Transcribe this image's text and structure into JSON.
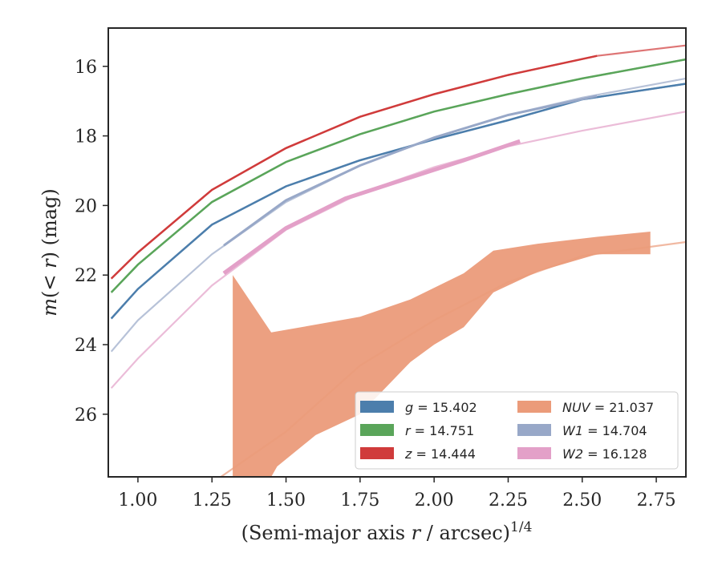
{
  "chart_data": {
    "type": "line",
    "xlabel_pre": "(Semi-major axis ",
    "xlabel_var": "r",
    "xlabel_mid": " / arcsec)",
    "xlabel_sup": "1/4",
    "ylabel_pre": "m",
    "ylabel_mid": "(< ",
    "ylabel_var": "r",
    "ylabel_post": ") (mag)",
    "xlim": [
      0.9,
      2.85
    ],
    "ylim": [
      27.8,
      14.9
    ],
    "y_inverted": true,
    "grid": false,
    "legend_position": "bottom-right",
    "legend_columns": 2,
    "x_ticks": [
      {
        "v": 1.0,
        "label": "1.00"
      },
      {
        "v": 1.25,
        "label": "1.25"
      },
      {
        "v": 1.5,
        "label": "1.50"
      },
      {
        "v": 1.75,
        "label": "1.75"
      },
      {
        "v": 2.0,
        "label": "2.00"
      },
      {
        "v": 2.25,
        "label": "2.25"
      },
      {
        "v": 2.5,
        "label": "2.50"
      },
      {
        "v": 2.75,
        "label": "2.75"
      }
    ],
    "y_ticks": [
      {
        "v": 16,
        "label": "16"
      },
      {
        "v": 18,
        "label": "18"
      },
      {
        "v": 20,
        "label": "20"
      },
      {
        "v": 22,
        "label": "22"
      },
      {
        "v": 24,
        "label": "24"
      },
      {
        "v": 26,
        "label": "26"
      }
    ],
    "series": [
      {
        "key": "g",
        "band": "g",
        "value": "15.402",
        "color": "#4c7eac",
        "model": [
          [
            0.91,
            23.25
          ],
          [
            1.0,
            22.4
          ],
          [
            1.25,
            20.55
          ],
          [
            1.5,
            19.45
          ],
          [
            1.75,
            18.7
          ],
          [
            2.0,
            18.1
          ],
          [
            2.25,
            17.55
          ],
          [
            2.5,
            16.95
          ],
          [
            2.85,
            16.5
          ]
        ],
        "data": [
          [
            0.91,
            23.25
          ],
          [
            1.0,
            22.4
          ],
          [
            1.25,
            20.55
          ],
          [
            1.5,
            19.45
          ],
          [
            1.75,
            18.7
          ],
          [
            2.0,
            18.1
          ],
          [
            2.25,
            17.55
          ],
          [
            2.5,
            16.95
          ],
          [
            2.85,
            16.5
          ]
        ],
        "data_width": 2.5
      },
      {
        "key": "r",
        "band": "r",
        "value": "14.751",
        "color": "#5aa55a",
        "model": [
          [
            0.91,
            22.5
          ],
          [
            1.0,
            21.7
          ],
          [
            1.25,
            19.9
          ],
          [
            1.5,
            18.75
          ],
          [
            1.75,
            17.95
          ],
          [
            2.0,
            17.3
          ],
          [
            2.25,
            16.8
          ],
          [
            2.5,
            16.35
          ],
          [
            2.85,
            15.8
          ]
        ],
        "data": [
          [
            0.91,
            22.5
          ],
          [
            1.0,
            21.7
          ],
          [
            1.25,
            19.9
          ],
          [
            1.5,
            18.75
          ],
          [
            1.75,
            17.95
          ],
          [
            2.0,
            17.3
          ],
          [
            2.25,
            16.8
          ],
          [
            2.5,
            16.35
          ],
          [
            2.85,
            15.8
          ]
        ],
        "data_width": 2.5
      },
      {
        "key": "z",
        "band": "z",
        "value": "14.444",
        "color": "#d03b3b",
        "model": [
          [
            0.91,
            22.1
          ],
          [
            1.0,
            21.35
          ],
          [
            1.25,
            19.55
          ],
          [
            1.5,
            18.35
          ],
          [
            1.75,
            17.45
          ],
          [
            2.0,
            16.8
          ],
          [
            2.25,
            16.25
          ],
          [
            2.55,
            15.7
          ],
          [
            2.85,
            15.4
          ]
        ],
        "data": [
          [
            0.91,
            22.1
          ],
          [
            1.0,
            21.35
          ],
          [
            1.25,
            19.55
          ],
          [
            1.5,
            18.35
          ],
          [
            1.75,
            17.45
          ],
          [
            2.0,
            16.8
          ],
          [
            2.25,
            16.25
          ],
          [
            2.55,
            15.7
          ]
        ],
        "data_width": 2.5
      },
      {
        "key": "nuv",
        "band": "NUV",
        "value": "21.037",
        "color": "#eb9b7a",
        "model": [
          [
            1.28,
            27.8
          ],
          [
            1.5,
            26.5
          ],
          [
            1.75,
            24.6
          ],
          [
            2.0,
            23.3
          ],
          [
            2.25,
            22.2
          ],
          [
            2.5,
            21.45
          ],
          [
            2.85,
            21.05
          ]
        ],
        "band_upper": [
          [
            1.32,
            22.0
          ],
          [
            1.45,
            23.65
          ],
          [
            1.75,
            23.2
          ],
          [
            1.92,
            22.7
          ],
          [
            2.1,
            21.95
          ],
          [
            2.2,
            21.3
          ],
          [
            2.35,
            21.1
          ],
          [
            2.55,
            20.9
          ],
          [
            2.73,
            20.75
          ]
        ],
        "band_lower": [
          [
            1.32,
            27.8
          ],
          [
            1.45,
            27.8
          ],
          [
            1.47,
            27.5
          ],
          [
            1.6,
            26.6
          ],
          [
            1.75,
            26.0
          ],
          [
            1.92,
            24.5
          ],
          [
            2.0,
            24.0
          ],
          [
            2.1,
            23.5
          ],
          [
            2.2,
            22.5
          ],
          [
            2.35,
            21.9
          ],
          [
            2.55,
            21.4
          ],
          [
            2.73,
            21.4
          ]
        ],
        "data_width": 0
      },
      {
        "key": "w1",
        "band": "W1",
        "value": "14.704",
        "color": "#98a8c8",
        "model": [
          [
            0.91,
            24.2
          ],
          [
            1.0,
            23.3
          ],
          [
            1.25,
            21.4
          ],
          [
            1.5,
            19.9
          ],
          [
            1.75,
            18.85
          ],
          [
            2.0,
            18.05
          ],
          [
            2.25,
            17.4
          ],
          [
            2.5,
            16.9
          ],
          [
            2.85,
            16.35
          ]
        ],
        "data": [
          [
            1.29,
            21.15
          ],
          [
            1.5,
            19.85
          ],
          [
            1.75,
            18.85
          ],
          [
            2.0,
            18.05
          ],
          [
            2.25,
            17.4
          ],
          [
            2.55,
            16.85
          ]
        ],
        "data_width": 3
      },
      {
        "key": "w2",
        "band": "W2",
        "value": "16.128",
        "color": "#e3a0c8",
        "model": [
          [
            0.91,
            25.25
          ],
          [
            1.0,
            24.4
          ],
          [
            1.25,
            22.3
          ],
          [
            1.5,
            20.7
          ],
          [
            1.75,
            19.65
          ],
          [
            2.0,
            18.9
          ],
          [
            2.25,
            18.3
          ],
          [
            2.5,
            17.85
          ],
          [
            2.85,
            17.3
          ]
        ],
        "data": [
          [
            1.29,
            21.95
          ],
          [
            1.5,
            20.65
          ],
          [
            1.7,
            19.8
          ],
          [
            1.9,
            19.25
          ],
          [
            2.1,
            18.7
          ],
          [
            2.29,
            18.15
          ]
        ],
        "data_width": 5
      }
    ],
    "legend": [
      {
        "key": "g",
        "var": "g",
        "rest": " = 15.402"
      },
      {
        "key": "nuv",
        "var": "NUV",
        "rest": " = 21.037"
      },
      {
        "key": "r",
        "var": "r",
        "rest": " = 14.751"
      },
      {
        "key": "w1",
        "var": "W1",
        "rest": " = 14.704"
      },
      {
        "key": "z",
        "var": "z",
        "rest": " = 14.444"
      },
      {
        "key": "w2",
        "var": "W2",
        "rest": " = 16.128"
      }
    ]
  }
}
